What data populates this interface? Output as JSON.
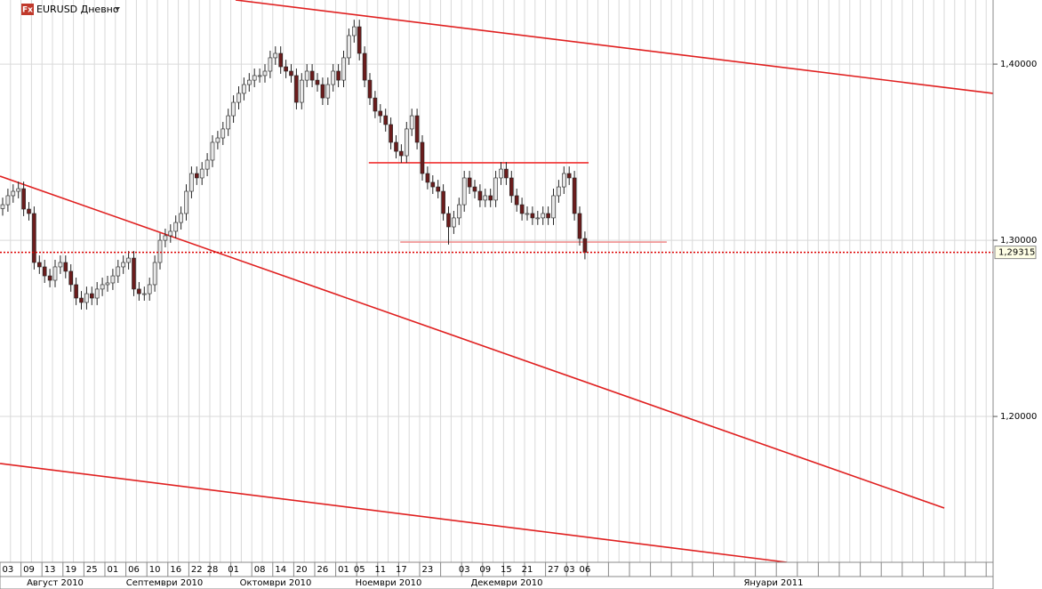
{
  "chart_data": {
    "type": "candlestick",
    "logo": "Fx",
    "title": "EURUSD Дневно",
    "categories": [
      null,
      "03",
      null,
      null,
      null,
      "09",
      null,
      null,
      null,
      "13",
      null,
      null,
      null,
      "19",
      null,
      null,
      null,
      "25",
      null,
      null,
      null,
      "01",
      null,
      null,
      null,
      "06",
      null,
      null,
      null,
      "10",
      null,
      null,
      null,
      "16",
      null,
      null,
      null,
      "22",
      null,
      null,
      "28",
      null,
      null,
      null,
      "01",
      null,
      null,
      null,
      null,
      "08",
      null,
      null,
      null,
      "14",
      null,
      null,
      null,
      "20",
      null,
      null,
      null,
      "26",
      null,
      null,
      null,
      "01",
      null,
      null,
      "05",
      null,
      null,
      null,
      "11",
      null,
      null,
      null,
      "17",
      null,
      null,
      null,
      null,
      "23",
      null,
      null,
      null,
      null,
      null,
      null,
      "03",
      null,
      null,
      null,
      "09",
      null,
      null,
      null,
      "15",
      null,
      null,
      null,
      "21",
      null,
      null,
      null,
      null,
      "27",
      null,
      null,
      "03",
      null,
      null,
      "06"
    ],
    "month_labels": [
      "Август 2010",
      "Септември 2010",
      "Октомври 2010",
      "Ноември 2010",
      "Декември 2010",
      "Януари 2011"
    ],
    "open": [
      1.318,
      1.3202,
      1.3253,
      1.3278,
      1.3293,
      1.3177,
      1.3152,
      1.2874,
      1.2849,
      1.2798,
      1.2773,
      1.2849,
      1.2874,
      1.2824,
      1.2748,
      1.2672,
      1.2647,
      1.2697,
      1.2672,
      1.2723,
      1.2748,
      1.2758,
      1.2798,
      1.2849,
      1.2874,
      1.2899,
      1.2723,
      1.2697,
      1.2697,
      1.2748,
      1.2874,
      1.3,
      1.3026,
      1.3051,
      1.3101,
      1.3152,
      1.3278,
      1.3379,
      1.3354,
      1.3404,
      1.3455,
      1.3556,
      1.3581,
      1.3632,
      1.3707,
      1.3783,
      1.3834,
      1.3884,
      1.3909,
      1.3935,
      1.3935,
      1.396,
      1.4036,
      1.4061,
      1.3985,
      1.396,
      1.3935,
      1.3783,
      1.3909,
      1.396,
      1.3909,
      1.3884,
      1.3808,
      1.3884,
      1.396,
      1.3909,
      1.4036,
      1.4162,
      1.4212,
      1.4061,
      1.3909,
      1.3808,
      1.3733,
      1.3707,
      1.3657,
      1.3556,
      1.3505,
      1.348,
      1.3632,
      1.3707,
      1.3556,
      1.3379,
      1.3329,
      1.3303,
      1.3278,
      1.3152,
      1.3076,
      1.3127,
      1.3202,
      1.3354,
      1.3303,
      1.3278,
      1.3228,
      1.3253,
      1.3228,
      1.3354,
      1.3404,
      1.3354,
      1.3253,
      1.3202,
      1.3152,
      1.3152,
      1.3127,
      1.3127,
      1.3152,
      1.3127,
      1.3253,
      1.3303,
      1.3379,
      1.3354,
      1.3152,
      1.301
    ],
    "high": [
      1.3242,
      1.3293,
      1.3318,
      1.3333,
      1.3333,
      1.3217,
      1.3192,
      1.2914,
      1.2889,
      1.2838,
      1.2889,
      1.2914,
      1.2914,
      1.2864,
      1.2788,
      1.2712,
      1.2737,
      1.2737,
      1.2763,
      1.2788,
      1.2798,
      1.2838,
      1.2889,
      1.2914,
      1.2939,
      1.2939,
      1.2763,
      1.2737,
      1.2788,
      1.2914,
      1.304,
      1.3066,
      1.3091,
      1.3141,
      1.3192,
      1.3318,
      1.3419,
      1.3419,
      1.3444,
      1.3495,
      1.3596,
      1.3621,
      1.3672,
      1.3747,
      1.3823,
      1.3874,
      1.3924,
      1.3949,
      1.3975,
      1.3975,
      1.4,
      1.4076,
      1.4101,
      1.4101,
      1.4025,
      1.4,
      1.3975,
      1.3949,
      1.4,
      1.4,
      1.3949,
      1.3924,
      1.3924,
      1.4,
      1.4,
      1.4076,
      1.4202,
      1.4252,
      1.4252,
      1.4101,
      1.3949,
      1.3848,
      1.3773,
      1.3747,
      1.3697,
      1.3596,
      1.3545,
      1.3672,
      1.3747,
      1.3747,
      1.3596,
      1.3419,
      1.3369,
      1.3343,
      1.3318,
      1.3192,
      1.3167,
      1.3242,
      1.3394,
      1.3394,
      1.3343,
      1.3318,
      1.3293,
      1.3293,
      1.3394,
      1.3444,
      1.3444,
      1.3394,
      1.3293,
      1.3242,
      1.3192,
      1.3192,
      1.3167,
      1.3192,
      1.3192,
      1.3293,
      1.3343,
      1.3419,
      1.3419,
      1.3394,
      1.3192,
      1.305
    ],
    "low": [
      1.314,
      1.3162,
      1.3213,
      1.3238,
      1.3137,
      1.3112,
      1.2834,
      1.2809,
      1.2758,
      1.2733,
      1.2733,
      1.2809,
      1.2784,
      1.2708,
      1.2632,
      1.2607,
      1.2607,
      1.2632,
      1.2632,
      1.2683,
      1.2708,
      1.2718,
      1.2758,
      1.2809,
      1.2834,
      1.2683,
      1.2657,
      1.2657,
      1.2657,
      1.2708,
      1.2834,
      1.296,
      1.2986,
      1.3011,
      1.3061,
      1.3112,
      1.3238,
      1.3314,
      1.3314,
      1.3364,
      1.3415,
      1.3516,
      1.3541,
      1.3592,
      1.3667,
      1.3743,
      1.3794,
      1.3844,
      1.3869,
      1.3895,
      1.3895,
      1.392,
      1.3996,
      1.3945,
      1.392,
      1.3895,
      1.3743,
      1.3743,
      1.3869,
      1.3869,
      1.3844,
      1.3768,
      1.3768,
      1.3844,
      1.3869,
      1.3869,
      1.3996,
      1.4122,
      1.4021,
      1.3869,
      1.3768,
      1.3693,
      1.3667,
      1.3617,
      1.3516,
      1.3465,
      1.344,
      1.344,
      1.3592,
      1.3516,
      1.3339,
      1.3289,
      1.3263,
      1.3238,
      1.3112,
      1.2976,
      1.3036,
      1.3087,
      1.3162,
      1.3263,
      1.3238,
      1.3188,
      1.3188,
      1.3188,
      1.3188,
      1.3314,
      1.3314,
      1.3213,
      1.3162,
      1.3112,
      1.3112,
      1.3087,
      1.3087,
      1.3087,
      1.3087,
      1.3087,
      1.3213,
      1.3263,
      1.3314,
      1.3112,
      1.297,
      1.2892
    ],
    "close": [
      1.3202,
      1.3253,
      1.3278,
      1.3293,
      1.3177,
      1.3152,
      1.2874,
      1.2849,
      1.2798,
      1.2773,
      1.2849,
      1.2874,
      1.2824,
      1.2748,
      1.2672,
      1.2647,
      1.2697,
      1.2672,
      1.2723,
      1.2748,
      1.2758,
      1.2798,
      1.2849,
      1.2874,
      1.2899,
      1.2723,
      1.2697,
      1.2697,
      1.2748,
      1.2874,
      1.3,
      1.3026,
      1.3051,
      1.3101,
      1.3152,
      1.3278,
      1.3379,
      1.3354,
      1.3404,
      1.3455,
      1.3556,
      1.3581,
      1.3632,
      1.3707,
      1.3783,
      1.3834,
      1.3884,
      1.3909,
      1.3935,
      1.3935,
      1.396,
      1.4036,
      1.4061,
      1.3985,
      1.396,
      1.3935,
      1.3783,
      1.3909,
      1.396,
      1.3909,
      1.3884,
      1.3808,
      1.3884,
      1.396,
      1.3909,
      1.4036,
      1.4162,
      1.4212,
      1.4061,
      1.3909,
      1.3808,
      1.3733,
      1.3707,
      1.3657,
      1.3556,
      1.3505,
      1.348,
      1.3632,
      1.3707,
      1.3556,
      1.3379,
      1.3329,
      1.3303,
      1.3278,
      1.3152,
      1.3076,
      1.3127,
      1.3202,
      1.3354,
      1.3303,
      1.3278,
      1.3228,
      1.3253,
      1.3228,
      1.3354,
      1.3404,
      1.3354,
      1.3253,
      1.3202,
      1.3152,
      1.3152,
      1.3127,
      1.3127,
      1.3152,
      1.3127,
      1.3253,
      1.3303,
      1.3379,
      1.3354,
      1.3152,
      1.301,
      1.2932
    ],
    "up_color": "#e8e8e8",
    "down_color": "#6b1c1c",
    "ylim": [
      1.1172,
      1.4364
    ],
    "yticks": [
      {
        "value": 1.2,
        "label": "1,20000"
      },
      {
        "value": 1.3,
        "label": "1,30000"
      },
      {
        "value": 1.4,
        "label": "1,40000"
      }
    ],
    "grid": true,
    "last_price": {
      "value": 1.29315,
      "label": "1,29315"
    },
    "trend_lines": [
      {
        "x": [
          44.4,
          188.8
        ],
        "y": [
          1.4364,
          1.3834
        ],
        "color": "#e02020"
      },
      {
        "x": [
          -0.5,
          179.5
        ],
        "y": [
          1.3364,
          1.148
        ],
        "color": "#e02020"
      },
      {
        "x": [
          -0.5,
          149.5
        ],
        "y": [
          1.1733,
          1.1172
        ],
        "color": "#e02020"
      },
      {
        "x": [
          69.8,
          111.7
        ],
        "y": [
          1.344,
          1.344
        ],
        "color": "#f03030"
      },
      {
        "x": [
          75.8,
          126.6
        ],
        "y": [
          1.299,
          1.299
        ],
        "color": "#f09090"
      }
    ]
  }
}
